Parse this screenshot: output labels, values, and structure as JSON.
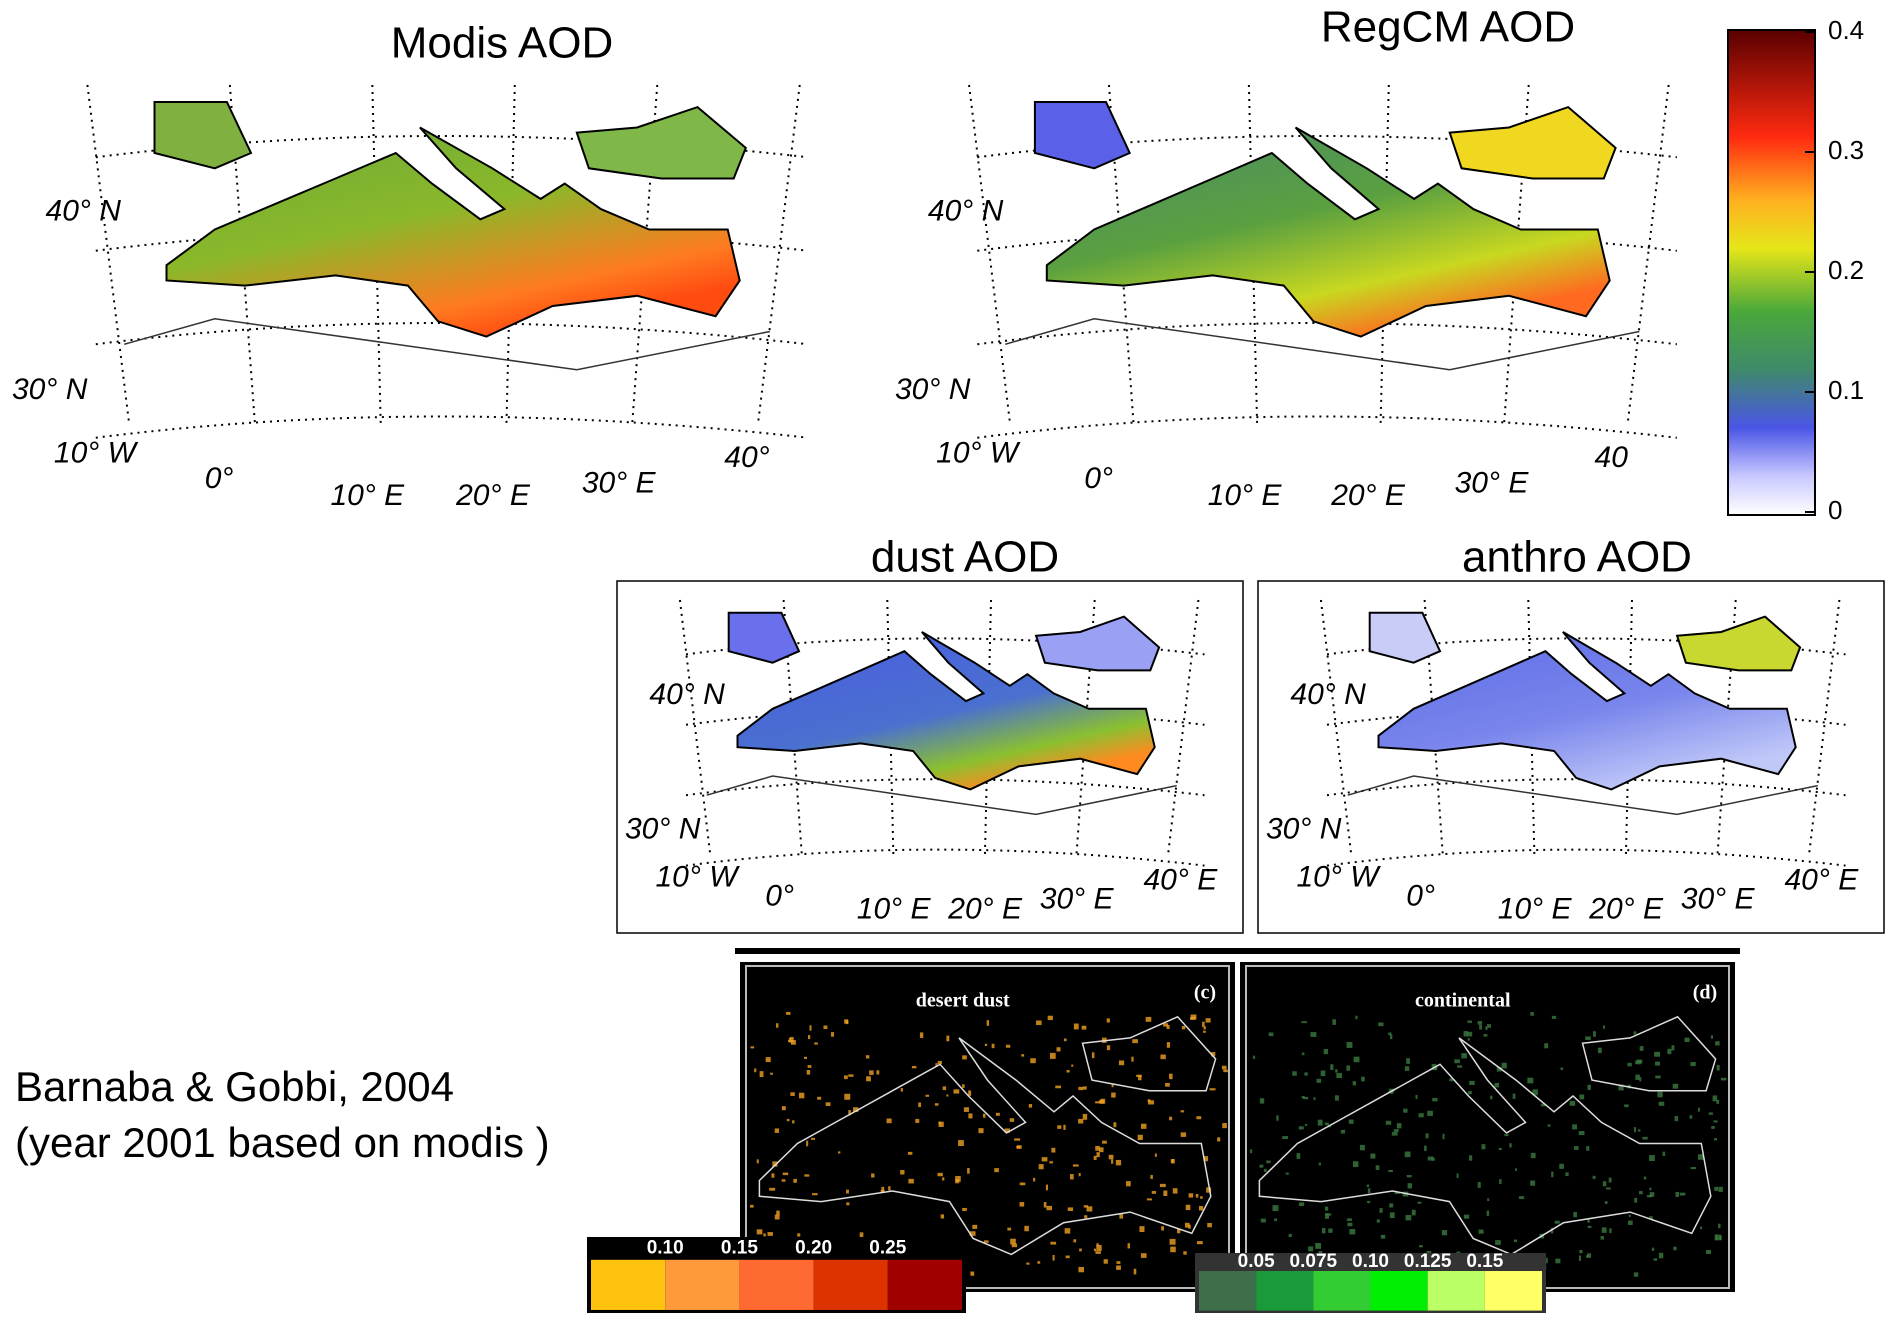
{
  "panels": [
    {
      "title": "Modis AOD",
      "lat_labels": [
        "40° N",
        "30° N"
      ],
      "lon_labels": [
        "10° W",
        "0°",
        "10° E",
        "20° E",
        "30° E",
        "40°"
      ]
    },
    {
      "title": "RegCM AOD",
      "lat_labels": [
        "40° N",
        "30° N"
      ],
      "lon_labels": [
        "10° W",
        "0°",
        "10° E",
        "20° E",
        "30° E",
        "40"
      ]
    },
    {
      "title": "dust AOD",
      "lat_labels": [
        "40° N",
        "30° N"
      ],
      "lon_labels": [
        "10° W",
        "0°",
        "10° E",
        "20° E",
        "30° E",
        "40° E"
      ]
    },
    {
      "title": "anthro AOD",
      "lat_labels": [
        "40° N",
        "30° N"
      ],
      "lon_labels": [
        "10° W",
        "0°",
        "10° E",
        "20° E",
        "30° E",
        "40° E"
      ]
    }
  ],
  "colorbar": {
    "labels": [
      "0.4",
      "0.3",
      "0.2",
      "0.1",
      "0"
    ]
  },
  "inset": {
    "panels": [
      {
        "title": "desert dust",
        "tag": "(c)"
      },
      {
        "title": "continental",
        "tag": "(d)"
      }
    ],
    "colorbars": [
      {
        "labels": [
          "0.10",
          "0.15",
          "0.20",
          "0.25"
        ]
      },
      {
        "labels": [
          "0.05",
          "0.075",
          "0.10",
          "0.125",
          "0.15"
        ]
      }
    ]
  },
  "citation": {
    "line1": "Barnaba & Gobbi, 2004",
    "line2": "(year 2001 based on modis )"
  }
}
